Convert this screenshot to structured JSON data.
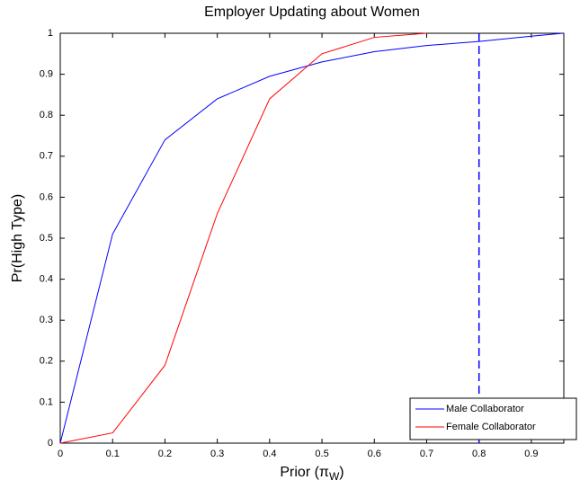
{
  "chart_data": {
    "type": "line",
    "title": "Employer Updating about Women",
    "x_label": [
      "Prior (π",
      "W",
      ")"
    ],
    "y_label": "Pr(High Type)",
    "xlim": [
      0,
      0.962
    ],
    "ylim": [
      0,
      1
    ],
    "xticks": [
      0,
      0.1,
      0.2,
      0.3,
      0.4,
      0.5,
      0.6,
      0.7,
      0.8,
      0.9
    ],
    "yticks": [
      0,
      0.1,
      0.2,
      0.3,
      0.4,
      0.5,
      0.6,
      0.7,
      0.8,
      0.9,
      1
    ],
    "legend": "lower right",
    "series": [
      {
        "name": "Male Collaborator",
        "color": "#0000ff",
        "x": [
          0,
          0.1,
          0.2,
          0.3,
          0.4,
          0.5,
          0.6,
          0.7,
          0.8,
          0.9,
          0.96
        ],
        "values": [
          0,
          0.51,
          0.74,
          0.84,
          0.895,
          0.93,
          0.955,
          0.97,
          0.98,
          0.993,
          1.0
        ]
      },
      {
        "name": "Female Collaborator",
        "color": "#ff0000",
        "x": [
          0,
          0.1,
          0.2,
          0.3,
          0.4,
          0.5,
          0.6,
          0.7
        ],
        "values": [
          0,
          0.025,
          0.19,
          0.56,
          0.84,
          0.95,
          0.99,
          1.0
        ]
      }
    ],
    "vline": {
      "x": 0.8,
      "color": "#0000ff"
    }
  }
}
